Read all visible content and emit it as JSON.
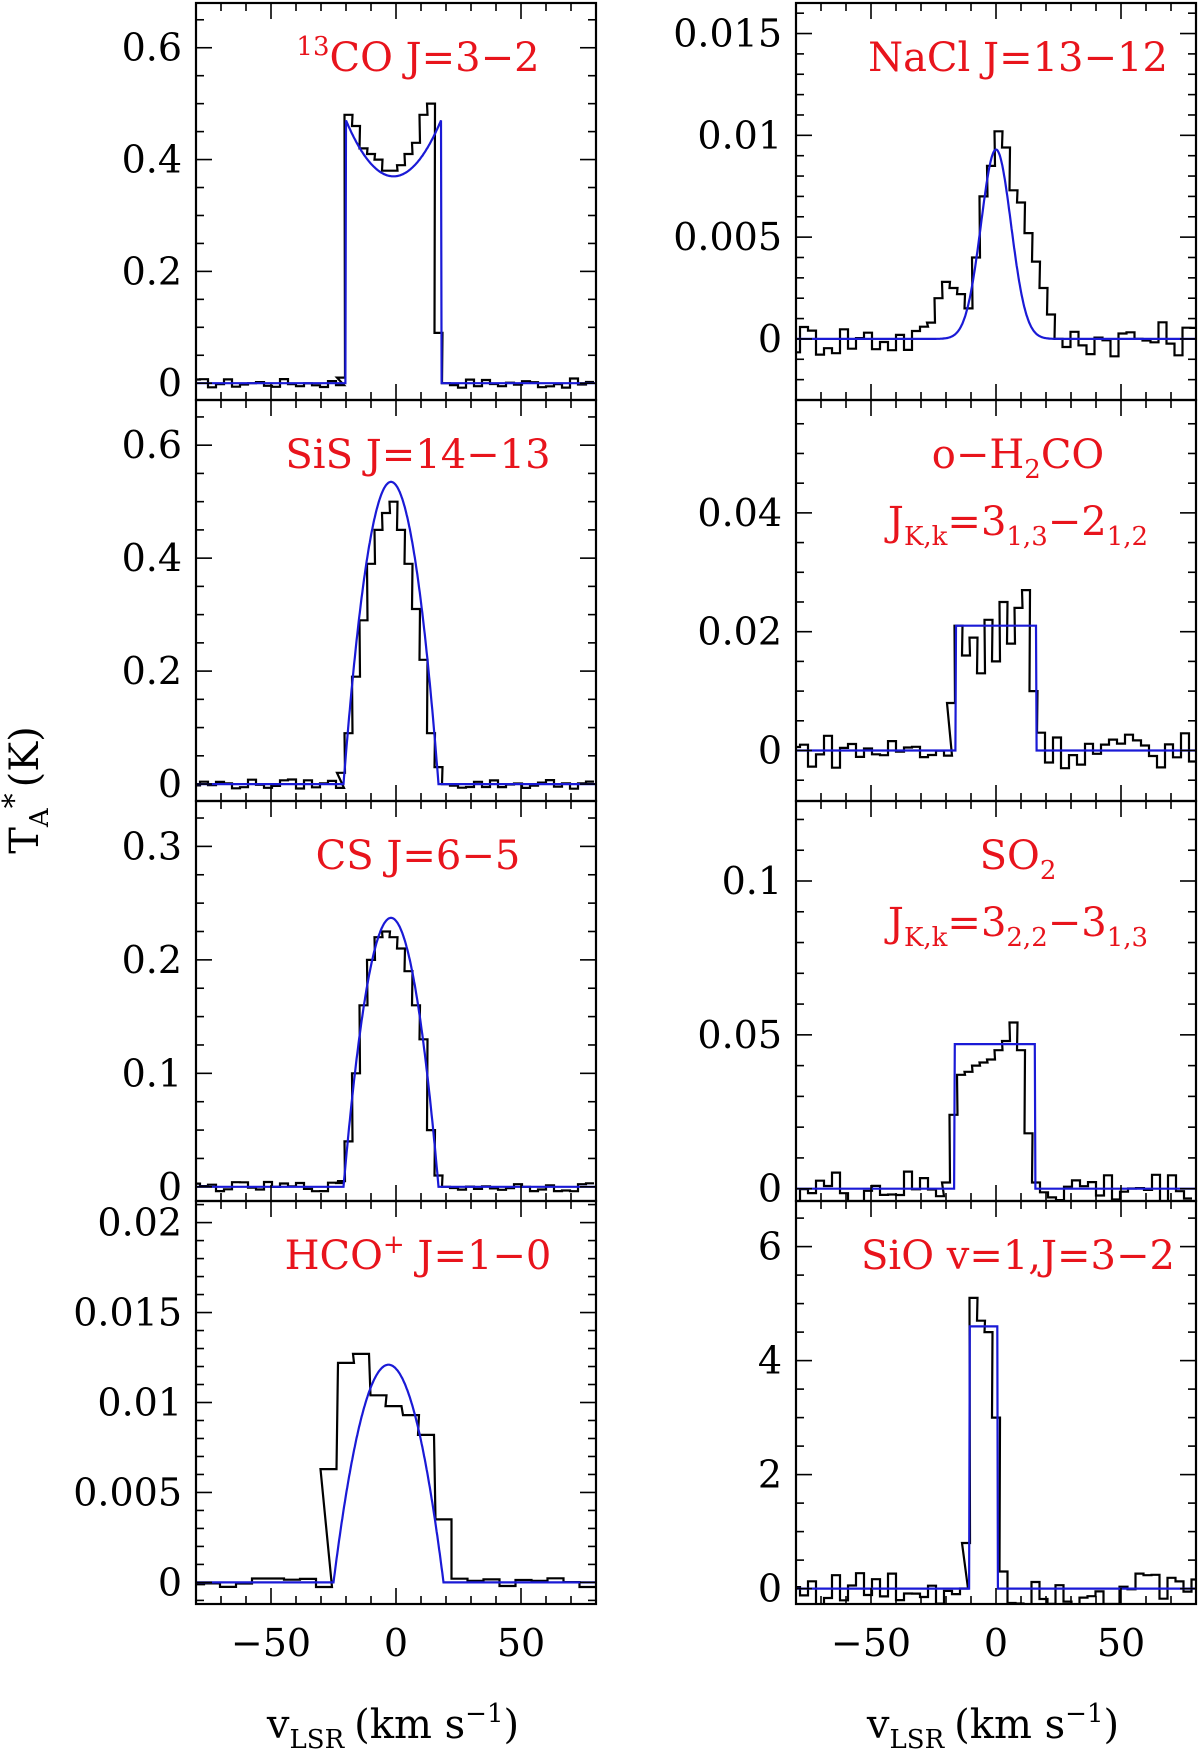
{
  "figure": {
    "ylabel": "T",
    "ylabel_sub": "A",
    "ylabel_sup": "*",
    "ylabel_unit": "(K)",
    "xlabel_var": "v",
    "xlabel_sub": "LSR",
    "xlabel_unit_pre": "(km s",
    "xlabel_unit_sup": "−1",
    "xlabel_unit_post": ")"
  },
  "colors": {
    "label": "#e8141c",
    "model": "#1a1ad6",
    "observed": "#000000"
  },
  "chart_data": [
    {
      "id": "13co",
      "type": "line",
      "label": [
        {
          "sup": "13"
        },
        {
          "t": "CO  J=3−2"
        }
      ],
      "xlim": [
        -80,
        80
      ],
      "ylim": [
        -0.03,
        0.68
      ],
      "yticks": [
        0,
        0.2,
        0.4,
        0.6
      ],
      "yticklabels": [
        "0",
        "0.2",
        "0.4",
        "0.6"
      ],
      "yminor": 0.05,
      "xticks": [
        -50,
        0,
        50
      ],
      "xticklabels": [
        "−50",
        "0",
        "50"
      ],
      "xminor": 10,
      "show_xticklabels": false,
      "fit": {
        "kind": "shell",
        "v0": -1,
        "vexp": 19,
        "center": 0.37,
        "edge": 0.47
      },
      "obs": {
        "step": 3.2,
        "pts": [
          [
            -22,
            0.01
          ],
          [
            -19,
            0.48
          ],
          [
            -16,
            0.46
          ],
          [
            -13,
            0.42
          ],
          [
            -10,
            0.41
          ],
          [
            -7,
            0.4
          ],
          [
            -4,
            0.38
          ],
          [
            -1,
            0.38
          ],
          [
            2,
            0.39
          ],
          [
            5,
            0.41
          ],
          [
            8,
            0.43
          ],
          [
            11,
            0.48
          ],
          [
            14,
            0.5
          ],
          [
            17,
            0.09
          ],
          [
            20,
            0
          ]
        ]
      }
    },
    {
      "id": "nacl",
      "type": "line",
      "label": [
        {
          "t": "NaCl  J=13−12"
        }
      ],
      "xlim": [
        -80,
        80
      ],
      "ylim": [
        -0.003,
        0.0165
      ],
      "yticks": [
        0,
        0.005,
        0.01,
        0.015
      ],
      "yticklabels": [
        "0",
        "0.005",
        "0.01",
        "0.015"
      ],
      "yminor": 0.001,
      "xticks": [
        -50,
        0,
        50
      ],
      "xticklabels": [
        "−50",
        "0",
        "50"
      ],
      "xminor": 10,
      "show_xticklabels": false,
      "fit": {
        "kind": "gauss",
        "v0": 0,
        "amp": 0.0093,
        "sigma": 6
      },
      "obs": {
        "step": 3.2,
        "pts": [
          [
            -26,
            0.0008
          ],
          [
            -23,
            0.002
          ],
          [
            -20,
            0.0028
          ],
          [
            -17,
            0.0025
          ],
          [
            -14,
            0.0022
          ],
          [
            -11,
            0.0015
          ],
          [
            -8,
            0.004
          ],
          [
            -5,
            0.007
          ],
          [
            -2,
            0.0085
          ],
          [
            1,
            0.0102
          ],
          [
            4,
            0.0094
          ],
          [
            7,
            0.0073
          ],
          [
            10,
            0.0067
          ],
          [
            13,
            0.0052
          ],
          [
            16,
            0.0038
          ],
          [
            19,
            0.0025
          ],
          [
            22,
            0.0012
          ],
          [
            25,
            0
          ]
        ]
      }
    },
    {
      "id": "sis",
      "type": "line",
      "label": [
        {
          "t": "SiS  J=14−13"
        }
      ],
      "xlim": [
        -80,
        80
      ],
      "ylim": [
        -0.03,
        0.68
      ],
      "yticks": [
        0,
        0.2,
        0.4,
        0.6
      ],
      "yticklabels": [
        "0",
        "0.2",
        "0.4",
        "0.6"
      ],
      "yminor": 0.05,
      "xticks": [
        -50,
        0,
        50
      ],
      "xticklabels": [
        "−50",
        "0",
        "50"
      ],
      "xminor": 10,
      "show_xticklabels": false,
      "fit": {
        "kind": "para",
        "v0": -2,
        "vexp": 19,
        "peak": 0.535
      },
      "obs": {
        "step": 3.2,
        "pts": [
          [
            -22,
            0.02
          ],
          [
            -19,
            0.09
          ],
          [
            -16,
            0.19
          ],
          [
            -13,
            0.29
          ],
          [
            -10,
            0.39
          ],
          [
            -7,
            0.45
          ],
          [
            -4,
            0.48
          ],
          [
            -1,
            0.5
          ],
          [
            2,
            0.45
          ],
          [
            5,
            0.39
          ],
          [
            8,
            0.31
          ],
          [
            11,
            0.22
          ],
          [
            14,
            0.09
          ],
          [
            17,
            0.03
          ],
          [
            20,
            0
          ]
        ]
      }
    },
    {
      "id": "h2co",
      "type": "line",
      "label": [
        {
          "t": "o−H"
        },
        {
          "sub": "2"
        },
        {
          "t": "CO"
        }
      ],
      "label2": [
        {
          "t": "J"
        },
        {
          "sub": "K,k"
        },
        {
          "t": "=3"
        },
        {
          "sub": "1,3"
        },
        {
          "t": "−2"
        },
        {
          "sub": "1,2"
        }
      ],
      "xlim": [
        -80,
        80
      ],
      "ylim": [
        -0.0085,
        0.059
      ],
      "yticks": [
        0,
        0.02,
        0.04
      ],
      "yticklabels": [
        "0",
        "0.02",
        "0.04"
      ],
      "yminor": 0.005,
      "xticks": [
        -50,
        0,
        50
      ],
      "xticklabels": [
        "−50",
        "0",
        "50"
      ],
      "xminor": 10,
      "show_xticklabels": false,
      "fit": {
        "kind": "flat",
        "v0": 0,
        "vexp": 16,
        "peak": 0.021
      },
      "obs": {
        "step": 3.2,
        "pts": [
          [
            -18,
            0.008
          ],
          [
            -15,
            0.021
          ],
          [
            -12,
            0.016
          ],
          [
            -9,
            0.019
          ],
          [
            -6,
            0.013
          ],
          [
            -3,
            0.022
          ],
          [
            0,
            0.015
          ],
          [
            3,
            0.025
          ],
          [
            6,
            0.018
          ],
          [
            9,
            0.024
          ],
          [
            12,
            0.027
          ],
          [
            15,
            0.01
          ],
          [
            18,
            0.003
          ]
        ]
      }
    },
    {
      "id": "cs",
      "type": "line",
      "label": [
        {
          "t": "CS  J=6−5"
        }
      ],
      "xlim": [
        -80,
        80
      ],
      "ylim": [
        -0.0125,
        0.34
      ],
      "yticks": [
        0,
        0.1,
        0.2,
        0.3
      ],
      "yticklabels": [
        "0",
        "0.1",
        "0.2",
        "0.3"
      ],
      "yminor": 0.025,
      "xticks": [
        -50,
        0,
        50
      ],
      "xticklabels": [
        "−50",
        "0",
        "50"
      ],
      "xminor": 10,
      "show_xticklabels": false,
      "fit": {
        "kind": "para",
        "v0": -2,
        "vexp": 19,
        "peak": 0.237
      },
      "obs": {
        "step": 3.2,
        "pts": [
          [
            -22,
            0.005
          ],
          [
            -19,
            0.04
          ],
          [
            -16,
            0.1
          ],
          [
            -13,
            0.16
          ],
          [
            -10,
            0.2
          ],
          [
            -7,
            0.22
          ],
          [
            -4,
            0.225
          ],
          [
            -1,
            0.22
          ],
          [
            2,
            0.21
          ],
          [
            5,
            0.19
          ],
          [
            8,
            0.16
          ],
          [
            11,
            0.13
          ],
          [
            14,
            0.05
          ],
          [
            17,
            0.01
          ],
          [
            20,
            0
          ]
        ]
      }
    },
    {
      "id": "so2",
      "type": "line",
      "label": [
        {
          "t": "SO"
        },
        {
          "sub": "2"
        }
      ],
      "label2": [
        {
          "t": "J"
        },
        {
          "sub": "K,k"
        },
        {
          "t": "=3"
        },
        {
          "sub": "2,2"
        },
        {
          "t": "−3"
        },
        {
          "sub": "1,3"
        }
      ],
      "xlim": [
        -80,
        80
      ],
      "ylim": [
        -0.004,
        0.126
      ],
      "yticks": [
        0,
        0.05,
        0.1
      ],
      "yticklabels": [
        "0",
        "0.05",
        "0.1"
      ],
      "yminor": 0.01,
      "xticks": [
        -50,
        0,
        50
      ],
      "xticklabels": [
        "−50",
        "0",
        "50"
      ],
      "xminor": 10,
      "show_xticklabels": false,
      "fit": {
        "kind": "flat",
        "v0": -0.5,
        "vexp": 16,
        "peak": 0.047
      },
      "obs": {
        "step": 3.2,
        "pts": [
          [
            -20,
            0.002
          ],
          [
            -17,
            0.024
          ],
          [
            -14,
            0.037
          ],
          [
            -11,
            0.038
          ],
          [
            -8,
            0.04
          ],
          [
            -5,
            0.041
          ],
          [
            -2,
            0.042
          ],
          [
            1,
            0.045
          ],
          [
            4,
            0.048
          ],
          [
            7,
            0.054
          ],
          [
            10,
            0.045
          ],
          [
            13,
            0.018
          ],
          [
            16,
            0.002
          ]
        ]
      }
    },
    {
      "id": "hco",
      "type": "line",
      "label": [
        {
          "t": "HCO"
        },
        {
          "sup": "+"
        },
        {
          "t": "  J=1−0"
        }
      ],
      "xlim": [
        -80,
        80
      ],
      "ylim": [
        -0.0012,
        0.0212
      ],
      "yticks": [
        0,
        0.005,
        0.01,
        0.015,
        0.02
      ],
      "yticklabels": [
        "0",
        "0.005",
        "0.01",
        "0.015",
        "0.02"
      ],
      "yminor": 0.001,
      "xticks": [
        -50,
        0,
        50
      ],
      "xticklabels": [
        "−50",
        "0",
        "50"
      ],
      "xminor": 10,
      "show_xticklabels": true,
      "fit": {
        "kind": "para",
        "v0": -3,
        "vexp": 22,
        "peak": 0.0121
      },
      "obs": {
        "step": 6.4,
        "pts": [
          [
            -27,
            0.0063
          ],
          [
            -20,
            0.0122
          ],
          [
            -14,
            0.0127
          ],
          [
            -7,
            0.0104
          ],
          [
            -1,
            0.0098
          ],
          [
            6,
            0.0093
          ],
          [
            12,
            0.0082
          ],
          [
            19,
            0.0035
          ]
        ]
      }
    },
    {
      "id": "sio",
      "type": "line",
      "label": [
        {
          "t": "SiO  v=1,J=3−2"
        }
      ],
      "xlim": [
        -80,
        80
      ],
      "ylim": [
        -0.27,
        6.8
      ],
      "yticks": [
        0,
        2,
        4,
        6
      ],
      "yticklabels": [
        "0",
        "2",
        "4",
        "6"
      ],
      "yminor": 0.5,
      "xticks": [
        -50,
        0,
        50
      ],
      "xticklabels": [
        "−50",
        "0",
        "50"
      ],
      "xminor": 10,
      "show_xticklabels": true,
      "fit": {
        "kind": "flat",
        "v0": -5,
        "vexp": 5.5,
        "peak": 4.6
      },
      "obs": {
        "step": 3.2,
        "pts": [
          [
            -12,
            0.8
          ],
          [
            -9,
            5.1
          ],
          [
            -6,
            4.7
          ],
          [
            -3,
            4.5
          ],
          [
            0,
            3.0
          ],
          [
            3,
            0.3
          ]
        ]
      }
    }
  ]
}
